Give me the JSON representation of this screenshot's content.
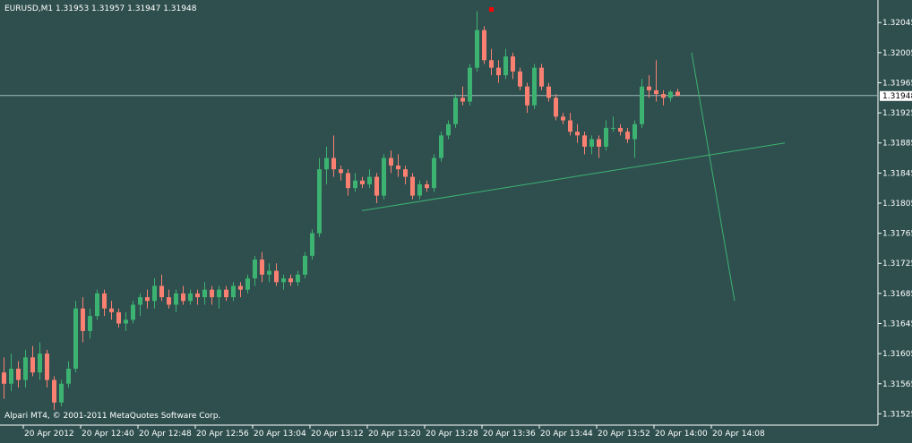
{
  "header": {
    "symbol_line": "EURUSD,M1  1.31953 1.31957 1.31947 1.31948"
  },
  "footer": {
    "copyright": "Alpari MT4, © 2001-2011 MetaQuotes Software Corp."
  },
  "colors": {
    "background": "#2f4f4f",
    "bull": "#3cb371",
    "bear": "#fa8072",
    "axis": "#ffffff",
    "trendline": "#3cb371",
    "price_line": "#9fb8b8",
    "marker": "#ff0000",
    "current_price_box": "#ffffff"
  },
  "chart_data": {
    "type": "candlestick",
    "symbol": "EURUSD",
    "timeframe": "M1",
    "ohlc_header": {
      "open": 1.31953,
      "high": 1.31957,
      "low": 1.31947,
      "close": 1.31948
    },
    "current_price": 1.31948,
    "ylim": [
      1.3151,
      1.32075
    ],
    "y_ticks": [
      1.32045,
      1.32005,
      1.31965,
      1.31925,
      1.31885,
      1.31845,
      1.31805,
      1.31765,
      1.31725,
      1.31685,
      1.31645,
      1.31605,
      1.31565,
      1.31525
    ],
    "y_tick_labels": [
      "1.32045",
      "1.32005",
      "1.31965",
      "1.31925",
      "1.31885",
      "1.31845",
      "1.31805",
      "1.31765",
      "1.31725",
      "1.31685",
      "1.31645",
      "1.31605",
      "1.31565",
      "1.31525"
    ],
    "x_tick_labels": [
      {
        "index": 3,
        "label": "20 Apr 2012"
      },
      {
        "index": 11,
        "label": "20 Apr 12:40"
      },
      {
        "index": 19,
        "label": "20 Apr 12:48"
      },
      {
        "index": 27,
        "label": "20 Apr 12:56"
      },
      {
        "index": 35,
        "label": "20 Apr 13:04"
      },
      {
        "index": 43,
        "label": "20 Apr 13:12"
      },
      {
        "index": 51,
        "label": "20 Apr 13:20"
      },
      {
        "index": 59,
        "label": "20 Apr 13:28"
      },
      {
        "index": 67,
        "label": "20 Apr 13:36"
      },
      {
        "index": 75,
        "label": "20 Apr 13:44"
      },
      {
        "index": 83,
        "label": "20 Apr 13:52"
      },
      {
        "index": 91,
        "label": "20 Apr 14:00"
      },
      {
        "index": 99,
        "label": "20 Apr 14:08"
      }
    ],
    "candles": [
      {
        "o": 1.3158,
        "h": 1.316,
        "l": 1.31545,
        "c": 1.31565
      },
      {
        "o": 1.31565,
        "h": 1.31605,
        "l": 1.31555,
        "c": 1.31585
      },
      {
        "o": 1.31585,
        "h": 1.31595,
        "l": 1.3156,
        "c": 1.3157
      },
      {
        "o": 1.3157,
        "h": 1.3161,
        "l": 1.3156,
        "c": 1.316
      },
      {
        "o": 1.316,
        "h": 1.31615,
        "l": 1.31575,
        "c": 1.3158
      },
      {
        "o": 1.3158,
        "h": 1.3162,
        "l": 1.3157,
        "c": 1.31605
      },
      {
        "o": 1.31605,
        "h": 1.3161,
        "l": 1.3156,
        "c": 1.3157
      },
      {
        "o": 1.3157,
        "h": 1.31575,
        "l": 1.3153,
        "c": 1.3154
      },
      {
        "o": 1.3154,
        "h": 1.3157,
        "l": 1.31535,
        "c": 1.31565
      },
      {
        "o": 1.31565,
        "h": 1.31595,
        "l": 1.3156,
        "c": 1.31585
      },
      {
        "o": 1.31585,
        "h": 1.31675,
        "l": 1.3158,
        "c": 1.31665
      },
      {
        "o": 1.31665,
        "h": 1.3168,
        "l": 1.3162,
        "c": 1.31635
      },
      {
        "o": 1.31635,
        "h": 1.31665,
        "l": 1.31625,
        "c": 1.31655
      },
      {
        "o": 1.31655,
        "h": 1.3169,
        "l": 1.3165,
        "c": 1.31685
      },
      {
        "o": 1.31685,
        "h": 1.3169,
        "l": 1.31655,
        "c": 1.31665
      },
      {
        "o": 1.31665,
        "h": 1.31675,
        "l": 1.3165,
        "c": 1.3166
      },
      {
        "o": 1.3166,
        "h": 1.31665,
        "l": 1.3164,
        "c": 1.31645
      },
      {
        "o": 1.31645,
        "h": 1.3166,
        "l": 1.31635,
        "c": 1.3165
      },
      {
        "o": 1.3165,
        "h": 1.31675,
        "l": 1.31645,
        "c": 1.3167
      },
      {
        "o": 1.3167,
        "h": 1.31685,
        "l": 1.31655,
        "c": 1.3168
      },
      {
        "o": 1.3168,
        "h": 1.3169,
        "l": 1.31665,
        "c": 1.31675
      },
      {
        "o": 1.31675,
        "h": 1.31705,
        "l": 1.31665,
        "c": 1.31695
      },
      {
        "o": 1.31695,
        "h": 1.3171,
        "l": 1.31675,
        "c": 1.3168
      },
      {
        "o": 1.3168,
        "h": 1.3169,
        "l": 1.31665,
        "c": 1.3167
      },
      {
        "o": 1.3167,
        "h": 1.3169,
        "l": 1.3166,
        "c": 1.31685
      },
      {
        "o": 1.31685,
        "h": 1.31695,
        "l": 1.3167,
        "c": 1.31675
      },
      {
        "o": 1.31675,
        "h": 1.3169,
        "l": 1.3167,
        "c": 1.31685
      },
      {
        "o": 1.31685,
        "h": 1.3169,
        "l": 1.3167,
        "c": 1.3168
      },
      {
        "o": 1.3168,
        "h": 1.317,
        "l": 1.3167,
        "c": 1.3169
      },
      {
        "o": 1.3169,
        "h": 1.31695,
        "l": 1.3167,
        "c": 1.3168
      },
      {
        "o": 1.3168,
        "h": 1.31695,
        "l": 1.31665,
        "c": 1.3169
      },
      {
        "o": 1.3169,
        "h": 1.31695,
        "l": 1.31675,
        "c": 1.3168
      },
      {
        "o": 1.3168,
        "h": 1.317,
        "l": 1.31675,
        "c": 1.31695
      },
      {
        "o": 1.31695,
        "h": 1.317,
        "l": 1.3168,
        "c": 1.3169
      },
      {
        "o": 1.3169,
        "h": 1.3171,
        "l": 1.31685,
        "c": 1.31705
      },
      {
        "o": 1.31705,
        "h": 1.31735,
        "l": 1.31695,
        "c": 1.3173
      },
      {
        "o": 1.3173,
        "h": 1.3174,
        "l": 1.317,
        "c": 1.3171
      },
      {
        "o": 1.3171,
        "h": 1.31725,
        "l": 1.317,
        "c": 1.31715
      },
      {
        "o": 1.31715,
        "h": 1.31725,
        "l": 1.31695,
        "c": 1.317
      },
      {
        "o": 1.317,
        "h": 1.3171,
        "l": 1.3169,
        "c": 1.31705
      },
      {
        "o": 1.31705,
        "h": 1.3171,
        "l": 1.31695,
        "c": 1.317
      },
      {
        "o": 1.317,
        "h": 1.31715,
        "l": 1.31695,
        "c": 1.3171
      },
      {
        "o": 1.3171,
        "h": 1.3174,
        "l": 1.31705,
        "c": 1.31735
      },
      {
        "o": 1.31735,
        "h": 1.3177,
        "l": 1.3173,
        "c": 1.31765
      },
      {
        "o": 1.31765,
        "h": 1.31865,
        "l": 1.3176,
        "c": 1.3185
      },
      {
        "o": 1.3185,
        "h": 1.3188,
        "l": 1.3183,
        "c": 1.31865
      },
      {
        "o": 1.31865,
        "h": 1.31895,
        "l": 1.3184,
        "c": 1.3185
      },
      {
        "o": 1.3185,
        "h": 1.31855,
        "l": 1.31835,
        "c": 1.31845
      },
      {
        "o": 1.31845,
        "h": 1.3185,
        "l": 1.31815,
        "c": 1.31825
      },
      {
        "o": 1.31825,
        "h": 1.31845,
        "l": 1.3182,
        "c": 1.31835
      },
      {
        "o": 1.31835,
        "h": 1.3184,
        "l": 1.31825,
        "c": 1.3183
      },
      {
        "o": 1.3183,
        "h": 1.3185,
        "l": 1.31825,
        "c": 1.3184
      },
      {
        "o": 1.3184,
        "h": 1.31845,
        "l": 1.31805,
        "c": 1.31815
      },
      {
        "o": 1.31815,
        "h": 1.3187,
        "l": 1.3181,
        "c": 1.31865
      },
      {
        "o": 1.31865,
        "h": 1.31875,
        "l": 1.31845,
        "c": 1.31855
      },
      {
        "o": 1.31855,
        "h": 1.3187,
        "l": 1.3184,
        "c": 1.3185
      },
      {
        "o": 1.3185,
        "h": 1.31855,
        "l": 1.3183,
        "c": 1.3184
      },
      {
        "o": 1.3184,
        "h": 1.31845,
        "l": 1.3181,
        "c": 1.31815
      },
      {
        "o": 1.31815,
        "h": 1.31835,
        "l": 1.3181,
        "c": 1.3183
      },
      {
        "o": 1.3183,
        "h": 1.31835,
        "l": 1.3182,
        "c": 1.31825
      },
      {
        "o": 1.31825,
        "h": 1.3187,
        "l": 1.3182,
        "c": 1.31865
      },
      {
        "o": 1.31865,
        "h": 1.319,
        "l": 1.3186,
        "c": 1.31895
      },
      {
        "o": 1.31895,
        "h": 1.31915,
        "l": 1.3189,
        "c": 1.3191
      },
      {
        "o": 1.3191,
        "h": 1.3195,
        "l": 1.31905,
        "c": 1.31945
      },
      {
        "o": 1.31945,
        "h": 1.3196,
        "l": 1.31935,
        "c": 1.3194
      },
      {
        "o": 1.3194,
        "h": 1.3199,
        "l": 1.31935,
        "c": 1.31985
      },
      {
        "o": 1.31985,
        "h": 1.3206,
        "l": 1.3198,
        "c": 1.32035
      },
      {
        "o": 1.32035,
        "h": 1.3204,
        "l": 1.3199,
        "c": 1.31995
      },
      {
        "o": 1.31995,
        "h": 1.3201,
        "l": 1.31975,
        "c": 1.31985
      },
      {
        "o": 1.31985,
        "h": 1.31995,
        "l": 1.31965,
        "c": 1.31975
      },
      {
        "o": 1.31975,
        "h": 1.3201,
        "l": 1.3197,
        "c": 1.32
      },
      {
        "o": 1.32,
        "h": 1.32005,
        "l": 1.3197,
        "c": 1.3198
      },
      {
        "o": 1.3198,
        "h": 1.31985,
        "l": 1.31955,
        "c": 1.3196
      },
      {
        "o": 1.3196,
        "h": 1.31965,
        "l": 1.31925,
        "c": 1.31935
      },
      {
        "o": 1.31935,
        "h": 1.3199,
        "l": 1.3193,
        "c": 1.31985
      },
      {
        "o": 1.31985,
        "h": 1.3199,
        "l": 1.31955,
        "c": 1.3196
      },
      {
        "o": 1.3196,
        "h": 1.31965,
        "l": 1.3194,
        "c": 1.31945
      },
      {
        "o": 1.31945,
        "h": 1.3195,
        "l": 1.31915,
        "c": 1.3192
      },
      {
        "o": 1.3192,
        "h": 1.31925,
        "l": 1.3191,
        "c": 1.31915
      },
      {
        "o": 1.31915,
        "h": 1.31925,
        "l": 1.31895,
        "c": 1.319
      },
      {
        "o": 1.319,
        "h": 1.3191,
        "l": 1.31885,
        "c": 1.31895
      },
      {
        "o": 1.31895,
        "h": 1.319,
        "l": 1.3187,
        "c": 1.3188
      },
      {
        "o": 1.3188,
        "h": 1.31895,
        "l": 1.3187,
        "c": 1.3189
      },
      {
        "o": 1.3189,
        "h": 1.31895,
        "l": 1.31865,
        "c": 1.3188
      },
      {
        "o": 1.3188,
        "h": 1.31915,
        "l": 1.31875,
        "c": 1.31905
      },
      {
        "o": 1.31905,
        "h": 1.3192,
        "l": 1.319,
        "c": 1.31905
      },
      {
        "o": 1.31905,
        "h": 1.3191,
        "l": 1.31895,
        "c": 1.319
      },
      {
        "o": 1.319,
        "h": 1.31905,
        "l": 1.31885,
        "c": 1.3189
      },
      {
        "o": 1.3189,
        "h": 1.31915,
        "l": 1.31865,
        "c": 1.3191
      },
      {
        "o": 1.3191,
        "h": 1.3197,
        "l": 1.31905,
        "c": 1.3196
      },
      {
        "o": 1.3196,
        "h": 1.31975,
        "l": 1.31945,
        "c": 1.31955
      },
      {
        "o": 1.31955,
        "h": 1.31995,
        "l": 1.3194,
        "c": 1.3195
      },
      {
        "o": 1.3195,
        "h": 1.31955,
        "l": 1.31935,
        "c": 1.31945
      },
      {
        "o": 1.31945,
        "h": 1.31955,
        "l": 1.3194,
        "c": 1.31953
      },
      {
        "o": 1.31953,
        "h": 1.31957,
        "l": 1.31947,
        "c": 1.31948
      }
    ],
    "trendlines": [
      {
        "from": {
          "index": 50,
          "price": 1.31795
        },
        "to": {
          "index": 109,
          "price": 1.31885
        }
      },
      {
        "from": {
          "index": 96,
          "price": 1.32005
        },
        "to": {
          "index": 102,
          "price": 1.31675
        }
      }
    ],
    "markers": [
      {
        "index": 68,
        "price": 1.32063,
        "shape": "square"
      }
    ]
  }
}
